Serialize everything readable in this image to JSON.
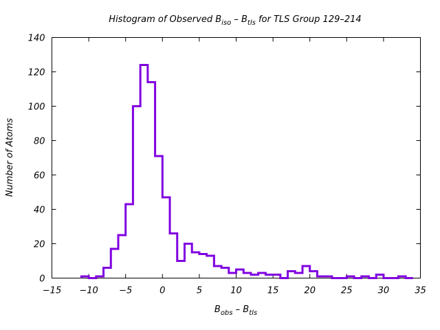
{
  "chart_data": {
    "type": "histogram",
    "title": {
      "main": "Histogram of Observed B",
      "sub1": "iso",
      "mid": " – B",
      "sub2": "tls",
      "tail": " for TLS Group 129–214"
    },
    "xlabel": {
      "main": "B",
      "sub1": "obs",
      "mid": " – B",
      "sub2": "tls"
    },
    "ylabel": "Number of Atoms",
    "xlim": [
      -15,
      35
    ],
    "ylim": [
      0,
      140
    ],
    "xticks": [
      "−15",
      "−10",
      "−5",
      "0",
      "5",
      "10",
      "15",
      "20",
      "25",
      "30",
      "35"
    ],
    "xtick_values": [
      -15,
      -10,
      -5,
      0,
      5,
      10,
      15,
      20,
      25,
      30,
      35
    ],
    "yticks": [
      "0",
      "20",
      "40",
      "60",
      "80",
      "100",
      "120",
      "140"
    ],
    "ytick_values": [
      0,
      20,
      40,
      60,
      80,
      100,
      120,
      140
    ],
    "grid": false,
    "line_color": "#8000e0",
    "bin_edges": [
      -11,
      -10,
      -9,
      -8,
      -7,
      -6,
      -5,
      -4,
      -3,
      -2,
      -1,
      0,
      1,
      2,
      3,
      4,
      5,
      6,
      7,
      8,
      9,
      10,
      11,
      12,
      13,
      14,
      15,
      16,
      17,
      18,
      19,
      20,
      21,
      22,
      23,
      24,
      25,
      26,
      27,
      28,
      29,
      30,
      31,
      32,
      33,
      34
    ],
    "counts": [
      1,
      0,
      1,
      6,
      17,
      25,
      43,
      100,
      124,
      114,
      71,
      47,
      26,
      10,
      20,
      15,
      14,
      13,
      7,
      6,
      3,
      5,
      3,
      2,
      3,
      2,
      2,
      0,
      4,
      3,
      7,
      4,
      1,
      1,
      0,
      0,
      1,
      0,
      1,
      0,
      2,
      0,
      0,
      1,
      0
    ]
  }
}
